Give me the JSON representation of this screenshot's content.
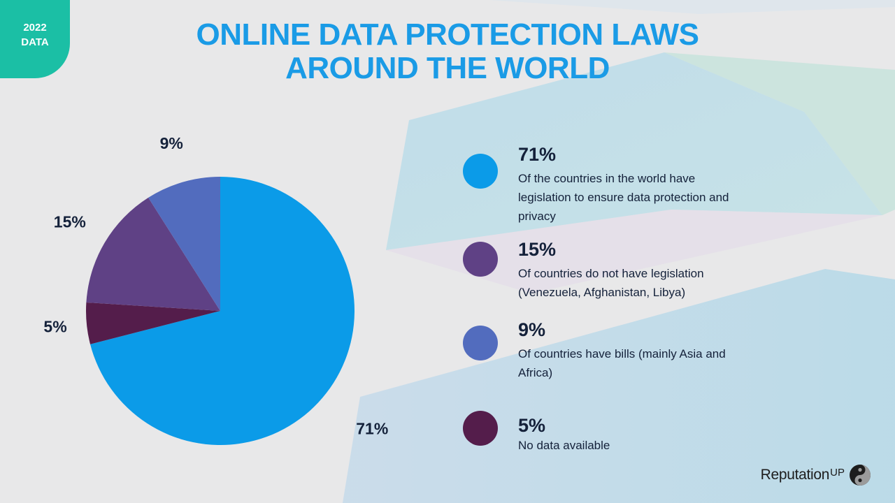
{
  "badge": {
    "year": "2022",
    "label": "DATA"
  },
  "title": {
    "line1": "ONLINE DATA PROTECTION LAWS",
    "line2": "AROUND THE WORLD"
  },
  "chart_data": {
    "type": "pie",
    "title": "ONLINE DATA PROTECTION LAWS AROUND THE WORLD",
    "categories": [
      "Of the countries in the world have legislation to ensure data protection and privacy",
      "No data available",
      "Of countries do not have legislation (Venezuela, Afghanistan, Libya)",
      "Of countries have bills (mainly Asia and Africa)"
    ],
    "values": [
      71,
      5,
      15,
      9
    ],
    "labels": [
      "71%",
      "5%",
      "15%",
      "9%"
    ],
    "colors": [
      "#0b9be8",
      "#541d4b",
      "#5f4185",
      "#526cbe"
    ],
    "legend_position": "right"
  },
  "legend": [
    {
      "pct": "71%",
      "desc": "Of the countries in the world have legislation to ensure data protection and privacy",
      "color": "#0b9be8"
    },
    {
      "pct": "15%",
      "desc": "Of countries do not have legislation (Venezuela, Afghanistan, Libya)",
      "color": "#5f4185"
    },
    {
      "pct": "9%",
      "desc": "Of countries have bills (mainly Asia and Africa)",
      "color": "#526cbe"
    },
    {
      "pct": "5%",
      "desc": "No data available",
      "color": "#541d4b"
    }
  ],
  "brand": {
    "name": "Reputation",
    "suffix": "UP"
  }
}
